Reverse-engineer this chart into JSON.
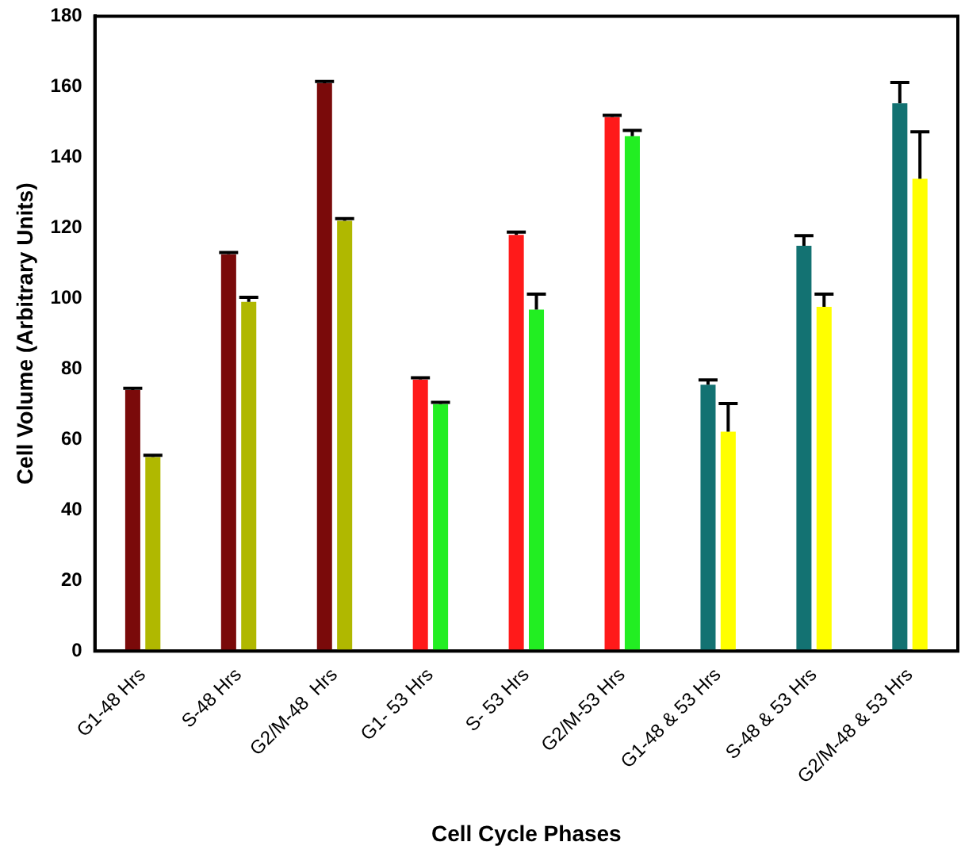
{
  "chart_data": {
    "type": "bar",
    "xlabel": "Cell Cycle Phases",
    "ylabel": "Cell Volume (Arbitrary Units)",
    "categories": [
      "G1-48 Hrs",
      "S-48 Hrs",
      "G2/M-48  Hrs",
      "G1- 53 Hrs",
      "S- 53 Hrs",
      "G2/M-53 Hrs",
      "G1-48 & 53 Hrs",
      "S-48 & 53 Hrs",
      "G2/M-48 & 53 Hrs"
    ],
    "series": [
      {
        "colors": [
          "#7a0a0a",
          "#7a0a0a",
          "#7a0a0a",
          "#ff1a1a",
          "#ff1a1a",
          "#ff1a1a",
          "#137272",
          "#137272",
          "#137272"
        ],
        "values": [
          74,
          112.5,
          161,
          77,
          118,
          151.4,
          75.5,
          114.9,
          155.3
        ],
        "errors": [
          [
            74,
            74.5
          ],
          [
            112.5,
            113
          ],
          [
            161,
            161.5
          ],
          [
            77,
            77.5
          ],
          [
            118,
            118.8
          ],
          [
            151.4,
            151.9
          ],
          [
            75.5,
            76.9
          ],
          [
            114.9,
            117.8
          ],
          [
            155.3,
            161.2
          ]
        ]
      },
      {
        "colors": [
          "#b0b800",
          "#b0b800",
          "#b0b800",
          "#22ee22",
          "#22ee22",
          "#22ee22",
          "#ffff00",
          "#ffff00",
          "#ffff00"
        ],
        "values": [
          55,
          99,
          122,
          70,
          96.8,
          146,
          62.2,
          97.6,
          133.9
        ],
        "errors": [
          [
            55,
            55.5
          ],
          [
            99,
            100.3
          ],
          [
            122,
            122.6
          ],
          [
            70,
            70.5
          ],
          [
            96.8,
            101.2
          ],
          [
            146,
            147.6
          ],
          [
            62.2,
            70.2
          ],
          [
            97.6,
            101.2
          ],
          [
            133.9,
            147.2
          ]
        ]
      }
    ],
    "ylim": [
      0,
      180
    ],
    "yticks": [
      0,
      20,
      40,
      60,
      80,
      100,
      120,
      140,
      160,
      180
    ],
    "grid": false,
    "legend": false
  }
}
